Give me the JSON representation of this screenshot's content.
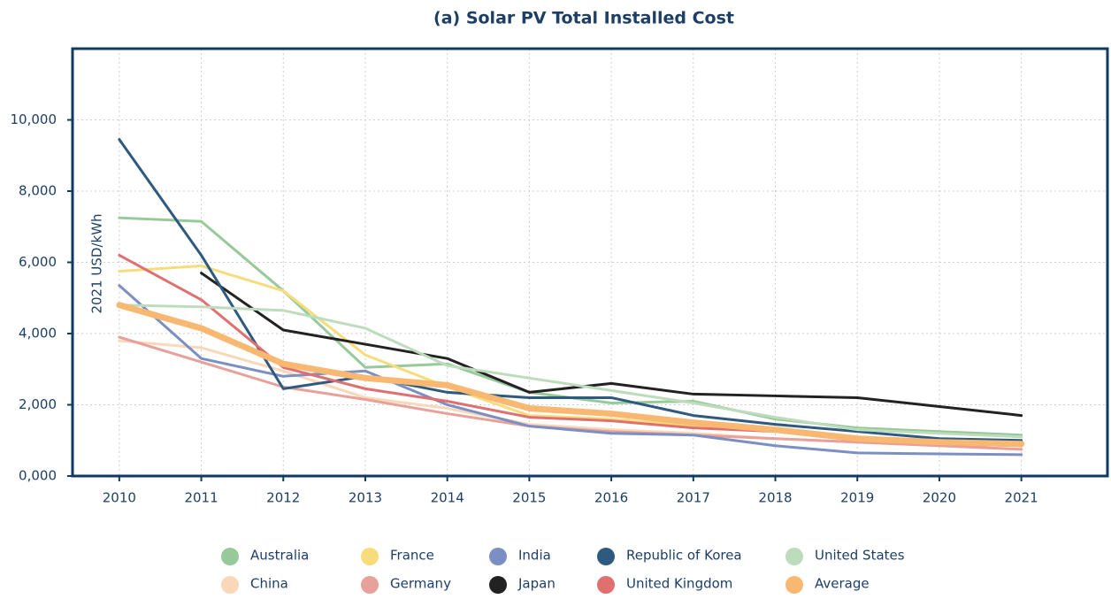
{
  "chart_data": {
    "type": "line",
    "title": "(a) Solar PV Total Installed Cost",
    "y_label": "2021 USD/kWh",
    "x": [
      2010,
      2011,
      2012,
      2013,
      2014,
      2015,
      2016,
      2017,
      2018,
      2019,
      2020,
      2021
    ],
    "xlim": [
      2009.43,
      2022.05
    ],
    "xticks": [
      2010,
      2011,
      2012,
      2013,
      2014,
      2015,
      2016,
      2017,
      2018,
      2019,
      2020,
      2021
    ],
    "ylim": [
      0,
      12000
    ],
    "yticks": [
      {
        "value": 0,
        "label": "0,000"
      },
      {
        "value": 2000,
        "label": "2,000"
      },
      {
        "value": 4000,
        "label": "4,000"
      },
      {
        "value": 6000,
        "label": "6,000"
      },
      {
        "value": 8000,
        "label": "8,000"
      },
      {
        "value": 10000,
        "label": "10,000"
      }
    ],
    "grid": true,
    "legend": "bottom",
    "series": [
      {
        "name": "Australia",
        "color": "#98c99a",
        "values": [
          7250,
          7150,
          5200,
          3050,
          3150,
          2350,
          2050,
          2100,
          1600,
          1350,
          1250,
          1150
        ]
      },
      {
        "name": "China",
        "color": "#f8d8b8",
        "values": [
          3800,
          3600,
          2950,
          2200,
          1900,
          1450,
          1300,
          1200,
          1050,
          950,
          850,
          750
        ]
      },
      {
        "name": "France",
        "color": "#f6dc7a",
        "values": [
          5750,
          5900,
          5200,
          3400,
          2500,
          1700,
          1600,
          1400,
          1300,
          1050,
          950,
          900
        ]
      },
      {
        "name": "Germany",
        "color": "#e8a09a",
        "values": [
          3900,
          3200,
          2500,
          2150,
          1750,
          1400,
          1250,
          1150,
          1050,
          950,
          850,
          750
        ]
      },
      {
        "name": "India",
        "color": "#7b8fc4",
        "values": [
          5350,
          3300,
          2800,
          2950,
          2000,
          1400,
          1200,
          1150,
          850,
          650,
          620,
          600
        ]
      },
      {
        "name": "Japan",
        "color": "#222222",
        "values": [
          null,
          5700,
          4100,
          3700,
          3300,
          2350,
          2600,
          2300,
          2250,
          2200,
          1950,
          1700
        ]
      },
      {
        "name": "Republic of Korea",
        "color": "#2f5a80",
        "values": [
          9450,
          6200,
          2450,
          2800,
          2350,
          2200,
          2200,
          1700,
          1450,
          1250,
          1050,
          1000
        ]
      },
      {
        "name": "United Kingdom",
        "color": "#e07070",
        "values": [
          6200,
          4950,
          3050,
          2450,
          2100,
          1650,
          1550,
          1350,
          1250,
          1000,
          900,
          850
        ]
      },
      {
        "name": "United States",
        "color": "#bcdcbc",
        "values": [
          4800,
          4750,
          4650,
          4150,
          3100,
          2750,
          2400,
          2050,
          1650,
          1300,
          1200,
          1100
        ]
      },
      {
        "name": "Average",
        "color": "#f9b872",
        "values": [
          4800,
          4150,
          3150,
          2750,
          2550,
          1900,
          1750,
          1500,
          1300,
          1050,
          950,
          900
        ]
      }
    ]
  }
}
